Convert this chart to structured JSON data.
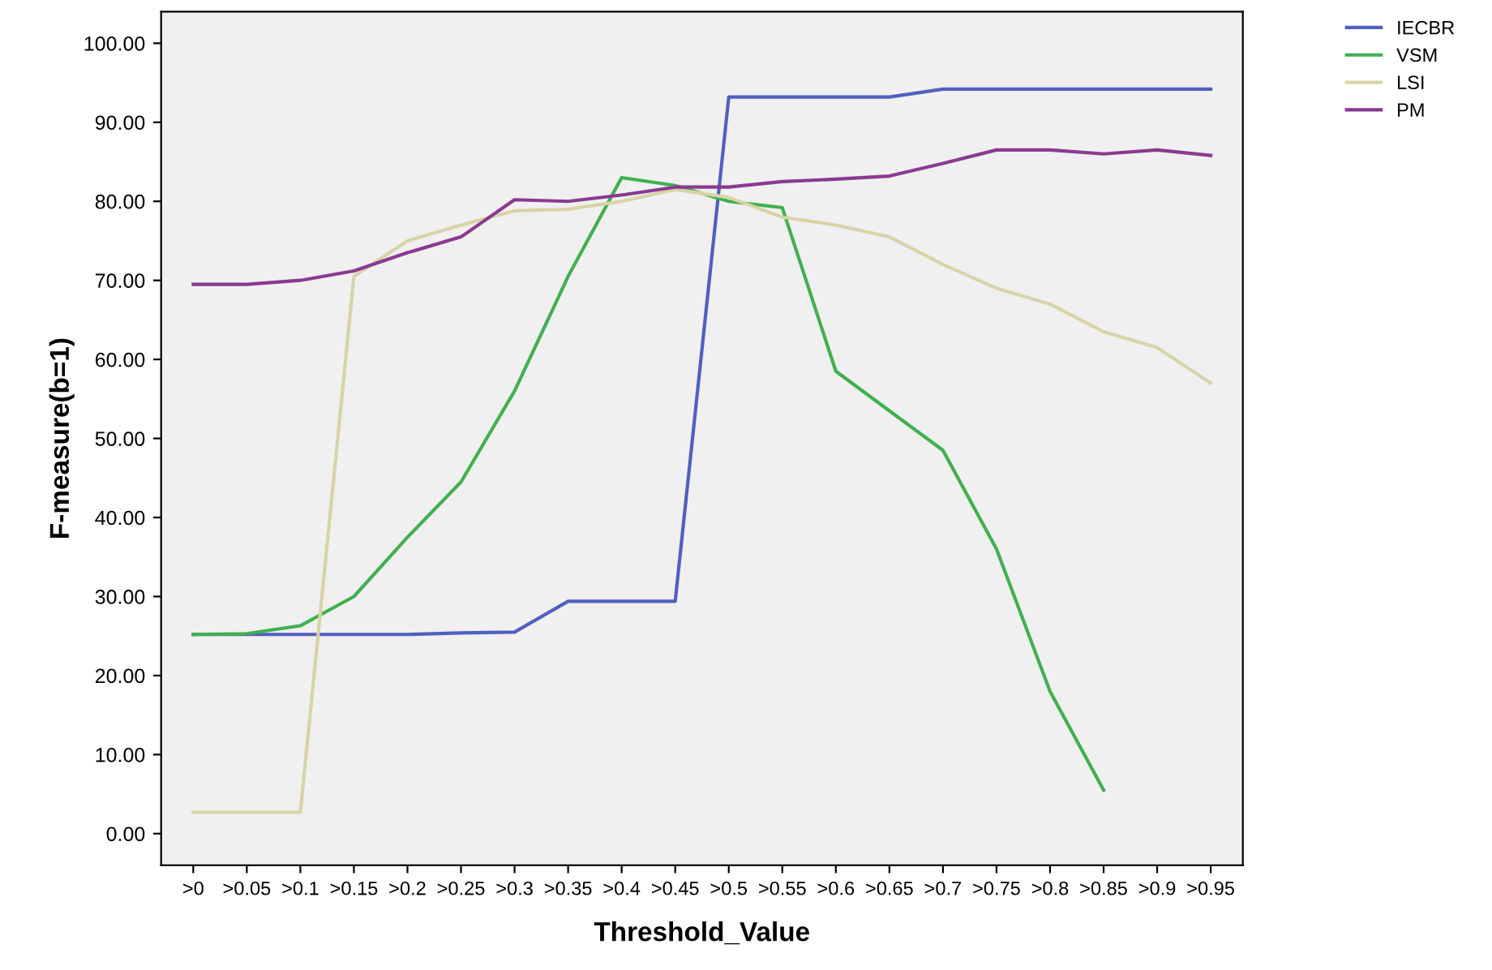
{
  "chart_data": {
    "type": "line",
    "xlabel": "Threshold_Value",
    "ylabel": "F-measure(b=1)",
    "categories": [
      ">0",
      ">0.05",
      ">0.1",
      ">0.15",
      ">0.2",
      ">0.25",
      ">0.3",
      ">0.35",
      ">0.4",
      ">0.45",
      ">0.5",
      ">0.55",
      ">0.6",
      ">0.65",
      ">0.7",
      ">0.75",
      ">0.8",
      ">0.85",
      ">0.9",
      ">0.95"
    ],
    "series": [
      {
        "name": "IECBR",
        "color": "#5060c0",
        "values": [
          25.2,
          25.2,
          25.2,
          25.2,
          25.2,
          25.4,
          25.5,
          29.4,
          29.4,
          29.4,
          93.2,
          93.2,
          93.2,
          93.2,
          94.2,
          94.2,
          94.2,
          94.2,
          94.2,
          94.2
        ]
      },
      {
        "name": "VSM",
        "color": "#40b050",
        "values": [
          25.2,
          25.3,
          26.3,
          30,
          37.5,
          44.5,
          56,
          70.5,
          83,
          82,
          80,
          79.2,
          58.5,
          53.5,
          48.5,
          36,
          18,
          5.5,
          null,
          null
        ]
      },
      {
        "name": "LSI",
        "color": "#d8d4a8",
        "values": [
          2.7,
          2.7,
          2.7,
          70.5,
          75,
          77,
          78.8,
          79,
          80,
          81.5,
          80.5,
          78,
          77,
          75.5,
          72,
          69,
          67,
          63.5,
          61.5,
          57
        ]
      },
      {
        "name": "PM",
        "color": "#8a3a90",
        "values": [
          69.5,
          69.5,
          70,
          71.2,
          73.5,
          75.5,
          80.2,
          80,
          80.8,
          81.8,
          81.8,
          82.5,
          82.8,
          83.2,
          84.8,
          86.5,
          86.5,
          86,
          86.5,
          85.8
        ]
      }
    ],
    "ylim": [
      -4,
      104
    ],
    "yticks": [
      {
        "value": 0,
        "label": "0.00"
      },
      {
        "value": 10,
        "label": "10.00"
      },
      {
        "value": 20,
        "label": "20.00"
      },
      {
        "value": 30,
        "label": "30.00"
      },
      {
        "value": 40,
        "label": "40.00"
      },
      {
        "value": 50,
        "label": "50.00"
      },
      {
        "value": 60,
        "label": "60.00"
      },
      {
        "value": 70,
        "label": "70.00"
      },
      {
        "value": 80,
        "label": "80.00"
      },
      {
        "value": 90,
        "label": "90.00"
      },
      {
        "value": 100,
        "label": "100.00"
      }
    ],
    "grid": false,
    "legend": "top right",
    "marker": "none",
    "line_style": "solid"
  }
}
